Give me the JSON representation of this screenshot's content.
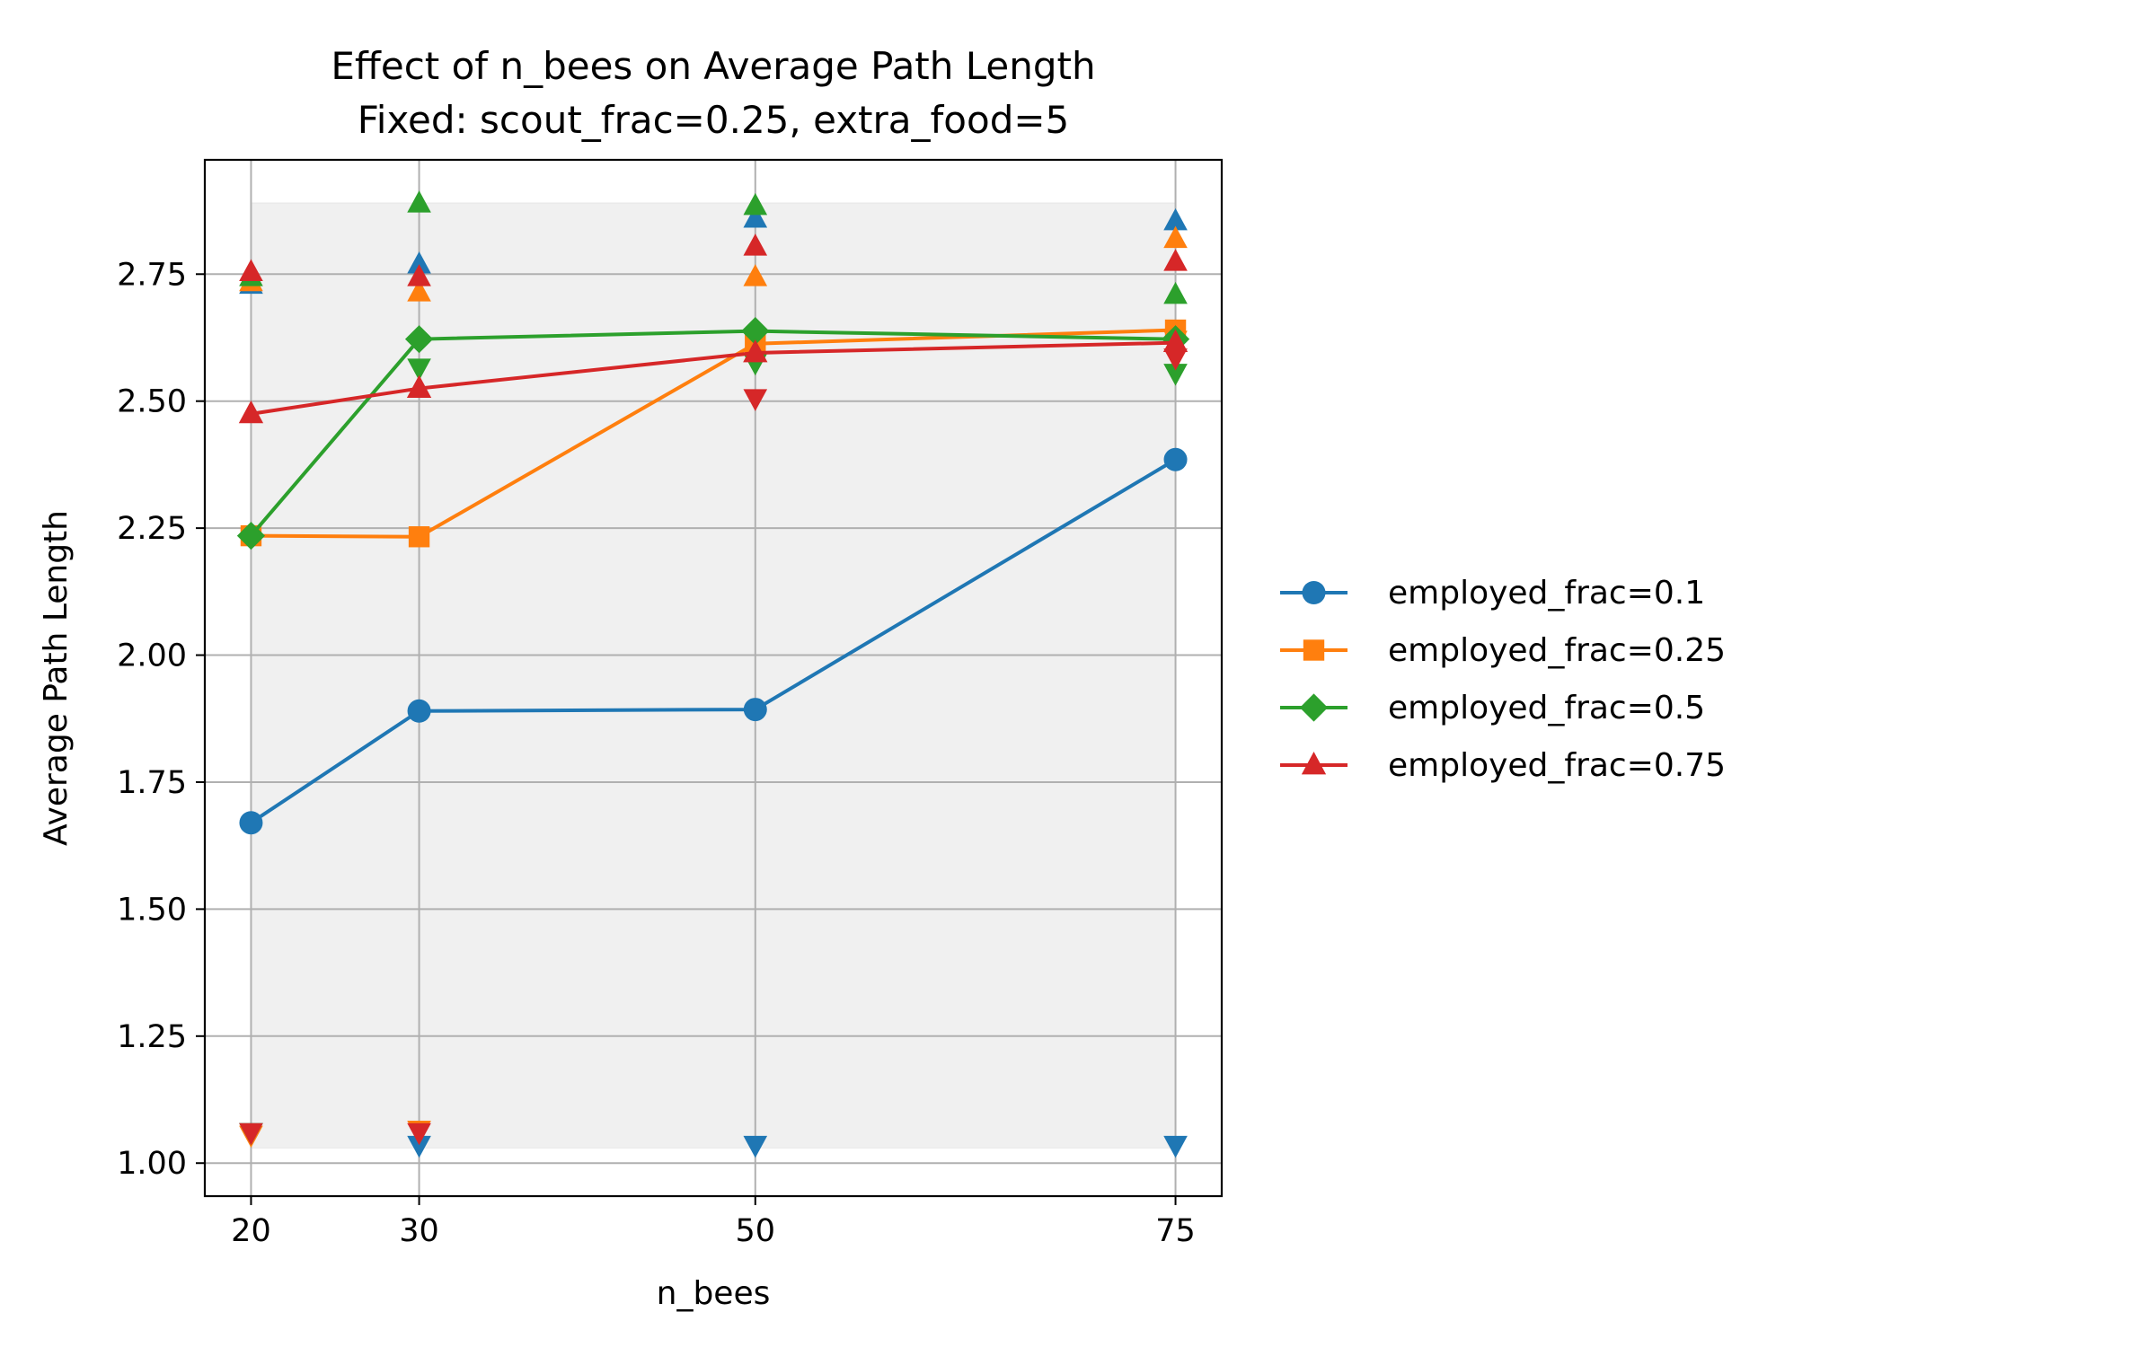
{
  "chart_data": {
    "type": "line",
    "title_line1": "Effect of n_bees on Average Path Length",
    "title_line2": "Fixed: scout_frac=0.25, extra_food=5",
    "xlabel": "n_bees",
    "ylabel": "Average Path Length",
    "x": [
      20,
      30,
      50,
      75
    ],
    "xlim": [
      17.25,
      77.75
    ],
    "ylim": [
      0.935,
      2.975
    ],
    "yticks": [
      1.0,
      1.25,
      1.5,
      1.75,
      2.0,
      2.25,
      2.5,
      2.75
    ],
    "ytick_labels": [
      "1.00",
      "1.25",
      "1.50",
      "1.75",
      "2.00",
      "2.25",
      "2.50",
      "2.75"
    ],
    "xtick_labels": [
      "20",
      "30",
      "50",
      "75"
    ],
    "grid": true,
    "legend_position": "right-outside",
    "band": {
      "x": [
        20,
        75
      ],
      "y": [
        1.03,
        2.89
      ],
      "color": "#f0f0f0"
    },
    "series": [
      {
        "name": "employed_frac=0.1",
        "color": "#1f77b4",
        "marker": "circle",
        "values": [
          1.67,
          1.89,
          1.893,
          2.385
        ],
        "max": [
          2.73,
          2.77,
          2.86,
          2.855
        ],
        "min": [
          1.06,
          1.035,
          1.035,
          1.035
        ]
      },
      {
        "name": "employed_frac=0.25",
        "color": "#ff7f0e",
        "marker": "square",
        "values": [
          2.235,
          2.233,
          2.613,
          2.64
        ],
        "max": [
          2.735,
          2.715,
          2.745,
          2.82
        ],
        "min": [
          1.055,
          1.065,
          2.62,
          2.62
        ]
      },
      {
        "name": "employed_frac=0.5",
        "color": "#2ca02c",
        "marker": "diamond",
        "values": [
          2.235,
          2.622,
          2.638,
          2.622
        ],
        "max": [
          2.745,
          2.89,
          2.885,
          2.71
        ],
        "min": [
          1.06,
          2.565,
          2.575,
          2.555
        ]
      },
      {
        "name": "employed_frac=0.75",
        "color": "#d62728",
        "marker": "triangle",
        "values": [
          2.475,
          2.525,
          2.595,
          2.615
        ],
        "max": [
          2.755,
          2.745,
          2.805,
          2.775
        ],
        "min": [
          1.06,
          1.06,
          2.505,
          2.585
        ]
      }
    ]
  }
}
